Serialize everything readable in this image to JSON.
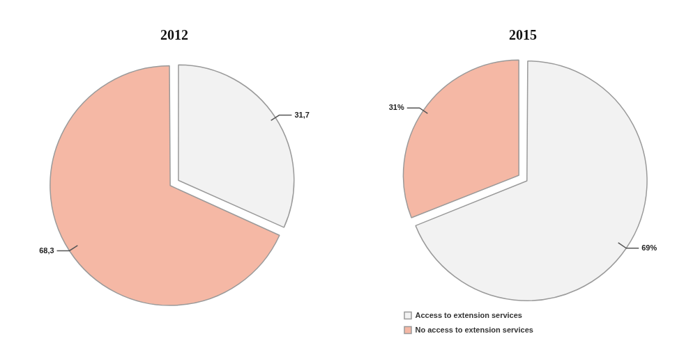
{
  "chart_data": [
    {
      "type": "pie",
      "title": "2012",
      "categories": [
        null,
        null
      ],
      "values": [
        31.7,
        68.3
      ],
      "colors": [
        "#f2f2f2",
        "#f5b8a5"
      ],
      "value_labels": [
        "31,7",
        "68,3"
      ],
      "legend": false
    },
    {
      "type": "pie",
      "title": "2015",
      "categories": [
        "Access to extension services",
        "No access to extension services"
      ],
      "values": [
        69,
        31
      ],
      "colors": [
        "#f2f2f2",
        "#f5b8a5"
      ],
      "value_labels": [
        "69%",
        "31%"
      ],
      "legend": "bottom"
    }
  ]
}
